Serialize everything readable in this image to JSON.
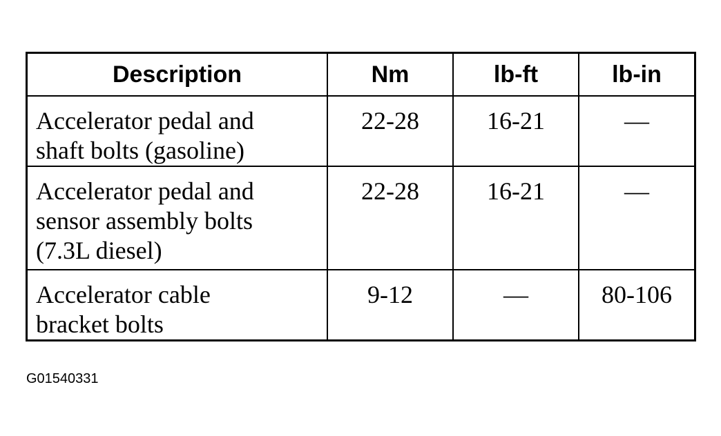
{
  "table": {
    "headers": [
      "Description",
      "Nm",
      "lb-ft",
      "lb-in"
    ],
    "rows": [
      {
        "description": [
          "Accelerator pedal and",
          "shaft bolts (gasoline)"
        ],
        "nm": "22-28",
        "lbft": "16-21",
        "lbin": "—"
      },
      {
        "description": [
          "Accelerator pedal and",
          "sensor assembly bolts",
          "(7.3L diesel)"
        ],
        "nm": "22-28",
        "lbft": "16-21",
        "lbin": "—"
      },
      {
        "description": [
          "Accelerator cable",
          "bracket bolts"
        ],
        "nm": "9-12",
        "lbft": "—",
        "lbin": "80-106"
      }
    ]
  },
  "figure_id": "G01540331"
}
